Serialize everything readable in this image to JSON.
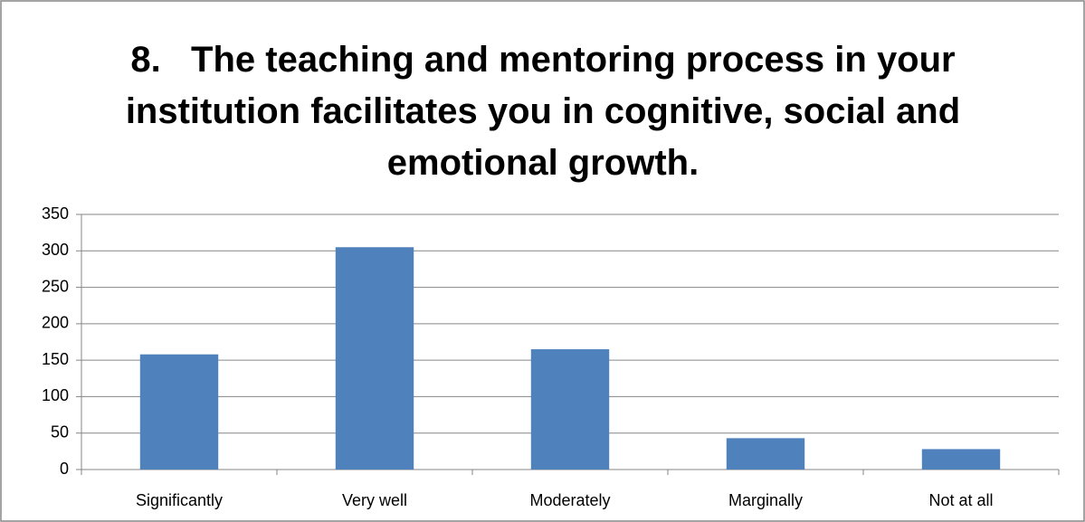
{
  "chart_data": {
    "type": "bar",
    "title": "8.\tThe teaching and mentoring process in your institution facilitates you in cognitive, social and emotional growth.",
    "categories": [
      "Significantly",
      "Very well",
      "Moderately",
      "Marginally",
      "Not at all"
    ],
    "values": [
      158,
      305,
      165,
      43,
      28
    ],
    "color": "#4f81bd",
    "ylim": [
      0,
      350
    ],
    "yticks": [
      0,
      50,
      100,
      150,
      200,
      250,
      300,
      350
    ],
    "grid": true
  }
}
